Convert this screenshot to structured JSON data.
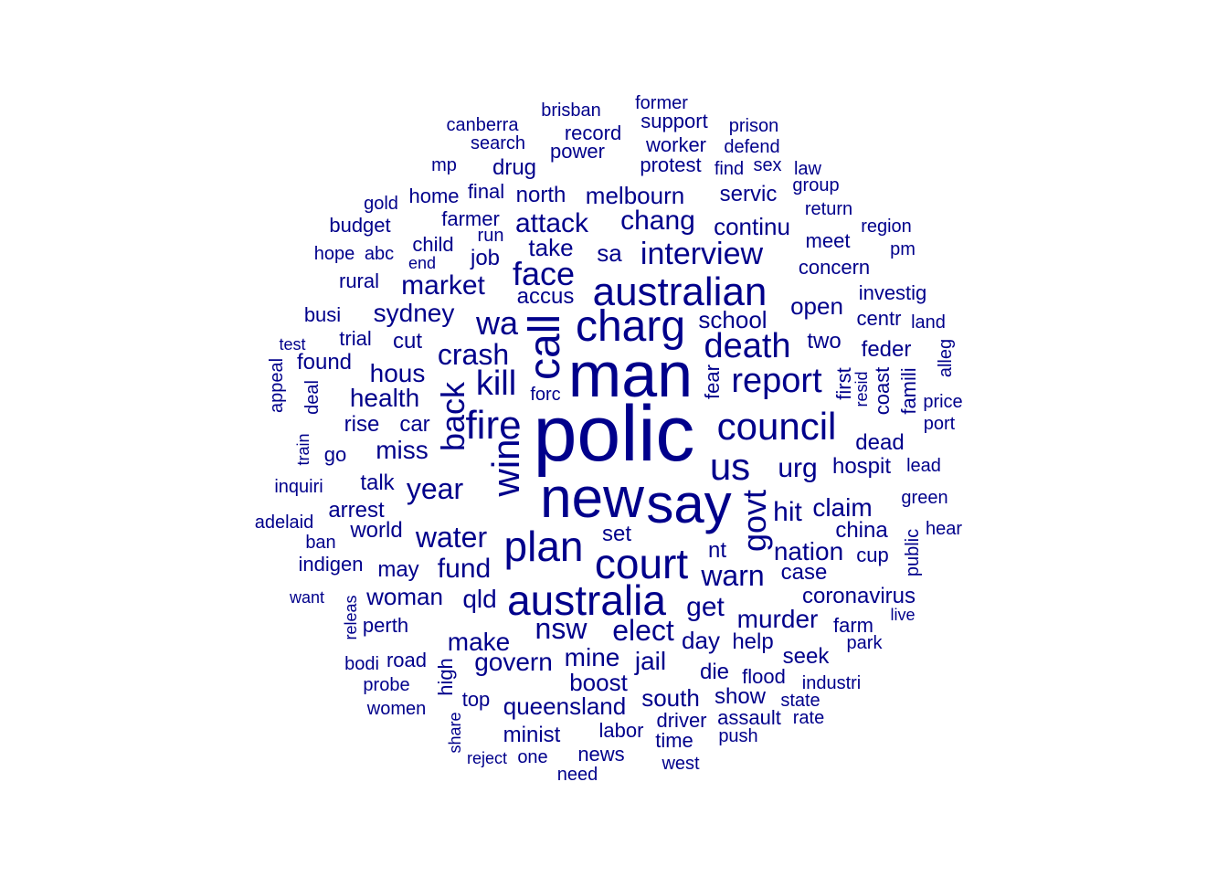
{
  "color": "#00008b",
  "words": [
    {
      "t": "polic",
      "s": 86
    },
    {
      "t": "man",
      "s": 70
    },
    {
      "t": "new",
      "s": 62
    },
    {
      "t": "say",
      "s": 60
    },
    {
      "t": "call",
      "s": 48,
      "r": 1
    },
    {
      "t": "charg",
      "s": 48
    },
    {
      "t": "australian",
      "s": 44
    },
    {
      "t": "court",
      "s": 46
    },
    {
      "t": "australia",
      "s": 46
    },
    {
      "t": "plan",
      "s": 46
    },
    {
      "t": "fire",
      "s": 44
    },
    {
      "t": "council",
      "s": 42
    },
    {
      "t": "win",
      "s": 42,
      "r": 1
    },
    {
      "t": "us",
      "s": 42
    },
    {
      "t": "death",
      "s": 38
    },
    {
      "t": "report",
      "s": 38
    },
    {
      "t": "face",
      "s": 36
    },
    {
      "t": "kill",
      "s": 38
    },
    {
      "t": "wa",
      "s": 36
    },
    {
      "t": "back",
      "s": 36,
      "r": 1
    },
    {
      "t": "govt",
      "s": 36,
      "r": 1
    },
    {
      "t": "interview",
      "s": 34
    },
    {
      "t": "water",
      "s": 32
    },
    {
      "t": "warn",
      "s": 32
    },
    {
      "t": "nsw",
      "s": 32
    },
    {
      "t": "year",
      "s": 32
    },
    {
      "t": "elect",
      "s": 32
    },
    {
      "t": "crash",
      "s": 32
    },
    {
      "t": "market",
      "s": 30
    },
    {
      "t": "attack",
      "s": 30
    },
    {
      "t": "fund",
      "s": 30
    },
    {
      "t": "chang",
      "s": 30
    },
    {
      "t": "sydney",
      "s": 28
    },
    {
      "t": "urg",
      "s": 30
    },
    {
      "t": "nation",
      "s": 28
    },
    {
      "t": "murder",
      "s": 28
    },
    {
      "t": "get",
      "s": 30
    },
    {
      "t": "hit",
      "s": 30
    },
    {
      "t": "claim",
      "s": 28
    },
    {
      "t": "miss",
      "s": 28
    },
    {
      "t": "health",
      "s": 28
    },
    {
      "t": "hous",
      "s": 28
    },
    {
      "t": "make",
      "s": 28
    },
    {
      "t": "mine",
      "s": 28
    },
    {
      "t": "qld",
      "s": 28
    },
    {
      "t": "govern",
      "s": 28
    },
    {
      "t": "open",
      "s": 26
    },
    {
      "t": "school",
      "s": 26
    },
    {
      "t": "sa",
      "s": 26
    },
    {
      "t": "take",
      "s": 26
    },
    {
      "t": "continu",
      "s": 26
    },
    {
      "t": "jail",
      "s": 28
    },
    {
      "t": "day",
      "s": 26
    },
    {
      "t": "boost",
      "s": 26
    },
    {
      "t": "queensland",
      "s": 26
    },
    {
      "t": "south",
      "s": 26
    },
    {
      "t": "melbourn",
      "s": 26
    },
    {
      "t": "woman",
      "s": 26
    },
    {
      "t": "world",
      "s": 24
    },
    {
      "t": "accus",
      "s": 24
    },
    {
      "t": "job",
      "s": 24
    },
    {
      "t": "coronavirus",
      "s": 24
    },
    {
      "t": "talk",
      "s": 24
    },
    {
      "t": "two",
      "s": 24
    },
    {
      "t": "help",
      "s": 24
    },
    {
      "t": "hospit",
      "s": 24
    },
    {
      "t": "servic",
      "s": 24
    },
    {
      "t": "die",
      "s": 24
    },
    {
      "t": "case",
      "s": 24
    },
    {
      "t": "may",
      "s": 24
    },
    {
      "t": "set",
      "s": 24
    },
    {
      "t": "nt",
      "s": 24
    },
    {
      "t": "cut",
      "s": 24
    },
    {
      "t": "dead",
      "s": 24
    },
    {
      "t": "china",
      "s": 24
    },
    {
      "t": "feder",
      "s": 24
    },
    {
      "t": "show",
      "s": 24
    },
    {
      "t": "seek",
      "s": 24
    },
    {
      "t": "rise",
      "s": 24
    },
    {
      "t": "car",
      "s": 24
    },
    {
      "t": "north",
      "s": 24
    },
    {
      "t": "drug",
      "s": 24
    },
    {
      "t": "minist",
      "s": 24
    },
    {
      "t": "found",
      "s": 24
    },
    {
      "t": "arrest",
      "s": 24
    },
    {
      "t": "indigen",
      "s": 22
    },
    {
      "t": "perth",
      "s": 22
    },
    {
      "t": "road",
      "s": 22
    },
    {
      "t": "driver",
      "s": 22
    },
    {
      "t": "protest",
      "s": 22
    },
    {
      "t": "power",
      "s": 22
    },
    {
      "t": "concern",
      "s": 22
    },
    {
      "t": "investig",
      "s": 22
    },
    {
      "t": "fear",
      "s": 22,
      "r": 1
    },
    {
      "t": "trial",
      "s": 22
    },
    {
      "t": "meet",
      "s": 22
    },
    {
      "t": "top",
      "s": 22
    },
    {
      "t": "assault",
      "s": 22
    },
    {
      "t": "flood",
      "s": 22
    },
    {
      "t": "labor",
      "s": 22
    },
    {
      "t": "high",
      "s": 22,
      "r": 1
    },
    {
      "t": "cup",
      "s": 22
    },
    {
      "t": "coast",
      "s": 22,
      "r": 1
    },
    {
      "t": "famili",
      "s": 22,
      "r": 1
    },
    {
      "t": "final",
      "s": 22
    },
    {
      "t": "farmer",
      "s": 22
    },
    {
      "t": "news",
      "s": 22
    },
    {
      "t": "rural",
      "s": 22
    },
    {
      "t": "centr",
      "s": 22
    },
    {
      "t": "go",
      "s": 22
    },
    {
      "t": "time",
      "s": 22
    },
    {
      "t": "search",
      "s": 20
    },
    {
      "t": "record",
      "s": 22
    },
    {
      "t": "support",
      "s": 22
    },
    {
      "t": "worker",
      "s": 22
    },
    {
      "t": "home",
      "s": 22
    },
    {
      "t": "child",
      "s": 22
    },
    {
      "t": "busi",
      "s": 22
    },
    {
      "t": "budget",
      "s": 22
    },
    {
      "t": "farm",
      "s": 22
    },
    {
      "t": "first",
      "s": 22,
      "r": 1
    },
    {
      "t": "forc",
      "s": 20
    },
    {
      "t": "deal",
      "s": 20,
      "r": 1
    },
    {
      "t": "mp",
      "s": 20
    },
    {
      "t": "brisban",
      "s": 20
    },
    {
      "t": "canberra",
      "s": 20
    },
    {
      "t": "former",
      "s": 20
    },
    {
      "t": "prison",
      "s": 20
    },
    {
      "t": "defend",
      "s": 20
    },
    {
      "t": "find",
      "s": 20
    },
    {
      "t": "sex",
      "s": 20
    },
    {
      "t": "law",
      "s": 20
    },
    {
      "t": "group",
      "s": 20
    },
    {
      "t": "return",
      "s": 20
    },
    {
      "t": "region",
      "s": 20
    },
    {
      "t": "pm",
      "s": 20
    },
    {
      "t": "gold",
      "s": 20
    },
    {
      "t": "run",
      "s": 20
    },
    {
      "t": "abc",
      "s": 20
    },
    {
      "t": "hope",
      "s": 20
    },
    {
      "t": "end",
      "s": 18
    },
    {
      "t": "land",
      "s": 20
    },
    {
      "t": "alleg",
      "s": 20,
      "r": 1
    },
    {
      "t": "test",
      "s": 18
    },
    {
      "t": "appeal",
      "s": 20,
      "r": 1
    },
    {
      "t": "resid",
      "s": 18,
      "r": 1
    },
    {
      "t": "price",
      "s": 20
    },
    {
      "t": "port",
      "s": 20
    },
    {
      "t": "train",
      "s": 18,
      "r": 1
    },
    {
      "t": "lead",
      "s": 20
    },
    {
      "t": "inquiri",
      "s": 20
    },
    {
      "t": "green",
      "s": 20
    },
    {
      "t": "adelaid",
      "s": 20
    },
    {
      "t": "public",
      "s": 20,
      "r": 1
    },
    {
      "t": "hear",
      "s": 20
    },
    {
      "t": "ban",
      "s": 20
    },
    {
      "t": "want",
      "s": 18
    },
    {
      "t": "releas",
      "s": 18,
      "r": 1
    },
    {
      "t": "live",
      "s": 18
    },
    {
      "t": "park",
      "s": 20
    },
    {
      "t": "bodi",
      "s": 20
    },
    {
      "t": "industri",
      "s": 20
    },
    {
      "t": "probe",
      "s": 20
    },
    {
      "t": "state",
      "s": 20
    },
    {
      "t": "women",
      "s": 20
    },
    {
      "t": "rate",
      "s": 20
    },
    {
      "t": "push",
      "s": 20
    },
    {
      "t": "share",
      "s": 18,
      "r": 1
    },
    {
      "t": "reject",
      "s": 18
    },
    {
      "t": "one",
      "s": 20
    },
    {
      "t": "west",
      "s": 20
    },
    {
      "t": "need",
      "s": 20
    }
  ]
}
